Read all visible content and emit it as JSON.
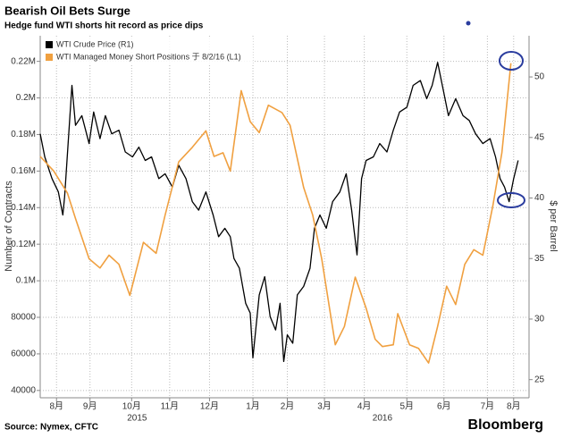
{
  "chart_data": {
    "type": "line",
    "title": "Bearish Oil Bets Surge",
    "subtitle": "Hedge fund WTI shorts hit record as price dips",
    "ylabel": "Number of Contracts",
    "y2label": "$ per Barrel",
    "source": "Source: Nymex, CFTC",
    "brand": "Bloomberg",
    "xlim": [
      0,
      54
    ],
    "xticks": [
      {
        "value": 1.8,
        "label": "8月"
      },
      {
        "value": 5.5,
        "label": "9月"
      },
      {
        "value": 10.1,
        "label": "10月"
      },
      {
        "value": 14.3,
        "label": "11月"
      },
      {
        "value": 18.7,
        "label": "12月"
      },
      {
        "value": 23.5,
        "label": "1月"
      },
      {
        "value": 27.3,
        "label": "2月"
      },
      {
        "value": 31.4,
        "label": "3月"
      },
      {
        "value": 35.8,
        "label": "4月"
      },
      {
        "value": 40.5,
        "label": "5月"
      },
      {
        "value": 44.6,
        "label": "6月"
      },
      {
        "value": 49.4,
        "label": "7月"
      },
      {
        "value": 52.3,
        "label": "8月"
      }
    ],
    "year_labels": [
      {
        "text": "2015",
        "x": 10.7
      },
      {
        "text": "2016",
        "x": 37.8
      }
    ],
    "ylim": [
      36000,
      234000
    ],
    "yticks": [
      40000,
      60000,
      80000,
      {
        "value": 100000,
        "label": "0.1M"
      },
      {
        "value": 120000,
        "label": "0.12M"
      },
      {
        "value": 140000,
        "label": "0.14M"
      },
      {
        "value": 160000,
        "label": "0.16M"
      },
      {
        "value": 180000,
        "label": "0.18M"
      },
      {
        "value": 200000,
        "label": "0.2M"
      },
      {
        "value": 220000,
        "label": "0.22M"
      }
    ],
    "y2lim": [
      23.5,
      53.4
    ],
    "y2ticks": [
      25,
      30,
      35,
      40,
      45,
      50
    ],
    "grid": true,
    "legend": "top-left",
    "series": [
      {
        "name": "WTI Crude Price (R1)",
        "color": "#000000",
        "axis": "y2",
        "x": [
          0,
          0.5,
          1.3,
          2,
          2.5,
          2.7,
          3.5,
          3.9,
          4.6,
          5.4,
          5.9,
          6.6,
          7.2,
          7.9,
          8.7,
          9.4,
          10.2,
          10.9,
          11.6,
          12.3,
          13.1,
          13.8,
          14.6,
          15.3,
          16.1,
          16.8,
          17.5,
          18.3,
          19.1,
          19.7,
          20.4,
          21,
          21.4,
          22,
          22.7,
          23.2,
          23.5,
          24.2,
          24.8,
          25.4,
          26,
          26.5,
          26.9,
          27.3,
          27.9,
          28.4,
          29.1,
          29.8,
          30.3,
          30.9,
          31.6,
          32.3,
          33.1,
          33.8,
          34.4,
          35,
          35.5,
          36,
          36.8,
          37.5,
          38.3,
          39,
          39.7,
          40.5,
          41.2,
          42,
          42.7,
          43.3,
          43.9,
          44.5,
          45.1,
          45.9,
          46.7,
          47.4,
          48.1,
          48.9,
          49.7,
          50.3,
          50.8,
          51.3,
          51.8,
          52.3,
          52.8
        ],
        "values": [
          45.3,
          43.4,
          41.6,
          40.5,
          38.6,
          40.1,
          49.3,
          46,
          46.8,
          44.5,
          47.1,
          44.9,
          46.8,
          45.3,
          45.6,
          43.8,
          43.4,
          44.2,
          43.1,
          43.4,
          41.6,
          42,
          40.9,
          42.7,
          41.6,
          39.7,
          39,
          40.5,
          38.6,
          36.8,
          37.5,
          36.8,
          35,
          34.2,
          31.3,
          30.5,
          26.8,
          32,
          33.5,
          30.2,
          29.1,
          31.3,
          26.5,
          28.7,
          28,
          32,
          32.7,
          34.2,
          37.5,
          38.6,
          37.5,
          39.7,
          40.5,
          42,
          39,
          35.3,
          41.6,
          43.1,
          43.4,
          44.5,
          43.8,
          45.6,
          47.1,
          47.5,
          49.3,
          49.7,
          48.2,
          49.3,
          51.2,
          49,
          46.8,
          48.2,
          46.8,
          46.4,
          45.3,
          44.5,
          44.9,
          43.4,
          41.6,
          40.9,
          39.7,
          41.6,
          43.1
        ]
      },
      {
        "name": "WTI Managed Money Short Positions 于 8/2/16 (L1)",
        "color": "#f0a040",
        "axis": "y",
        "x": [
          0,
          1.5,
          3,
          3.9,
          5.4,
          6.6,
          7.6,
          8.7,
          9.9,
          11.4,
          12.8,
          13.8,
          15.3,
          16.8,
          18.3,
          19.2,
          20.2,
          21,
          22.2,
          23.2,
          24.2,
          25.2,
          26.7,
          27.6,
          29.1,
          30.1,
          31.1,
          32.6,
          33.6,
          34.8,
          36,
          37,
          37.8,
          39,
          39.5,
          40.8,
          41.8,
          42.9,
          43.9,
          44.9,
          45.9,
          46.9,
          47.9,
          48.9,
          50,
          51,
          52
        ],
        "values": [
          168000,
          160000,
          148000,
          134000,
          112000,
          107000,
          114000,
          109000,
          92000,
          121000,
          115000,
          136000,
          165000,
          173000,
          182000,
          168000,
          170000,
          160000,
          204000,
          187000,
          181000,
          196000,
          192000,
          185000,
          151000,
          136000,
          112000,
          65000,
          75000,
          102000,
          85000,
          68000,
          64000,
          65000,
          82000,
          65000,
          63000,
          55000,
          75000,
          97000,
          87000,
          109000,
          117000,
          114000,
          141000,
          170000,
          219000
        ]
      }
    ]
  }
}
